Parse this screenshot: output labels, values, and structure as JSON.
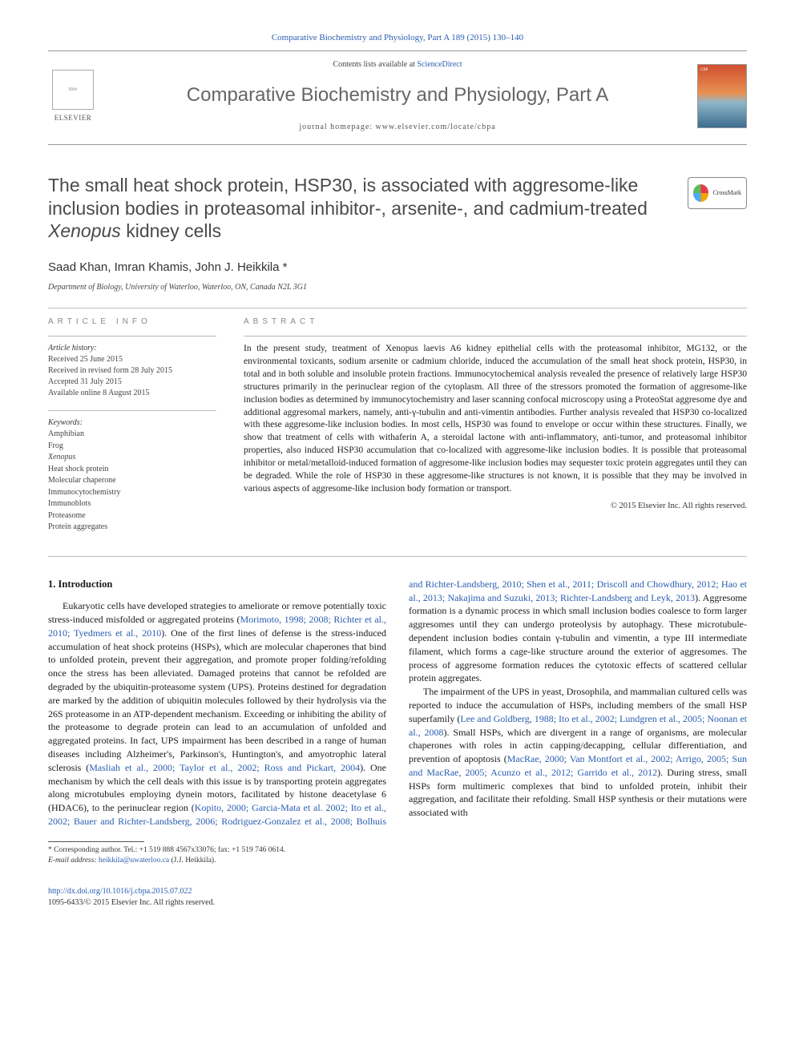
{
  "citation": "Comparative Biochemistry and Physiology, Part A 189 (2015) 130–140",
  "header": {
    "contents_prefix": "Contents lists available at ",
    "contents_link": "ScienceDirect",
    "journal_name": "Comparative Biochemistry and Physiology, Part A",
    "homepage_prefix": "journal homepage: ",
    "homepage_url": "www.elsevier.com/locate/cbpa",
    "publisher": "ELSEVIER"
  },
  "crossmark_label": "CrossMark",
  "title_pre": "The small heat shock protein, HSP30, is associated with aggresome-like inclusion bodies in proteasomal inhibitor-, arsenite-, and cadmium-treated ",
  "title_italic": "Xenopus",
  "title_post": " kidney cells",
  "authors": "Saad Khan, Imran Khamis, John J. Heikkila *",
  "affiliation": "Department of Biology, University of Waterloo, Waterloo, ON, Canada N2L 3G1",
  "article_info": {
    "heading": "article info",
    "history_label": "Article history:",
    "received": "Received 25 June 2015",
    "revised": "Received in revised form 28 July 2015",
    "accepted": "Accepted 31 July 2015",
    "online": "Available online 8 August 2015",
    "keywords_label": "Keywords:",
    "keywords": [
      "Amphibian",
      "Frog",
      "Xenopus",
      "Heat shock protein",
      "Molecular chaperone",
      "Immunocytochemistry",
      "Immunoblots",
      "Proteasome",
      "Protein aggregates"
    ]
  },
  "abstract": {
    "heading": "abstract",
    "text": "In the present study, treatment of Xenopus laevis A6 kidney epithelial cells with the proteasomal inhibitor, MG132, or the environmental toxicants, sodium arsenite or cadmium chloride, induced the accumulation of the small heat shock protein, HSP30, in total and in both soluble and insoluble protein fractions. Immunocytochemical analysis revealed the presence of relatively large HSP30 structures primarily in the perinuclear region of the cytoplasm. All three of the stressors promoted the formation of aggresome-like inclusion bodies as determined by immunocytochemistry and laser scanning confocal microscopy using a ProteoStat aggresome dye and additional aggresomal markers, namely, anti-γ-tubulin and anti-vimentin antibodies. Further analysis revealed that HSP30 co-localized with these aggresome-like inclusion bodies. In most cells, HSP30 was found to envelope or occur within these structures. Finally, we show that treatment of cells with withaferin A, a steroidal lactone with anti-inflammatory, anti-tumor, and proteasomal inhibitor properties, also induced HSP30 accumulation that co-localized with aggresome-like inclusion bodies. It is possible that proteasomal inhibitor or metal/metalloid-induced formation of aggresome-like inclusion bodies may sequester toxic protein aggregates until they can be degraded. While the role of HSP30 in these aggresome-like structures is not known, it is possible that they may be involved in various aspects of aggresome-like inclusion body formation or transport.",
    "copyright": "© 2015 Elsevier Inc. All rights reserved."
  },
  "intro": {
    "heading": "1. Introduction",
    "p1a": "Eukaryotic cells have developed strategies to ameliorate or remove potentially toxic stress-induced misfolded or aggregated proteins (",
    "p1_ref1": "Morimoto, 1998; 2008; Richter et al., 2010; Tyedmers et al., 2010",
    "p1b": "). One of the first lines of defense is the stress-induced accumulation of heat shock proteins (HSPs), which are molecular chaperones that bind to unfolded protein, prevent their aggregation, and promote proper folding/refolding once the stress has been alleviated. Damaged proteins that cannot be refolded are degraded by the ubiquitin-proteasome system (UPS). Proteins destined for degradation are marked by the addition of ubiquitin molecules followed by their hydrolysis via the 26S proteasome in an ATP-dependent mechanism. Exceeding or inhibiting the ability of the proteasome to degrade protein can lead to an accumulation of unfolded and aggregated proteins. In fact, UPS impairment has been described in a range of human diseases including Alzheimer's, Parkinson's, Huntington's, and amyotrophic lateral sclerosis (",
    "p1_ref2": "Masliah et al., 2000; Taylor et al., 2002; Ross and Pickart, 2004",
    "p1c": "). One mechanism by which the cell deals with this issue is by transporting protein aggregates along microtubules employing dynein motors, facilitated by histone deacetylase 6 (HDAC6), to the perinuclear region (",
    "p1_ref3": "Kopito, 2000; Garcia-Mata et al. 2002; Ito et al., 2002; Bauer and Richter-Landsberg, 2006; Rodriguez-Gonzalez et al., 2008; Bolhuis and Richter-Landsberg, 2010; Shen et al., 2011; Driscoll and Chowdhury, 2012; Hao et al., 2013; Nakajima and Suzuki, 2013; Richter-Landsberg and Leyk, 2013",
    "p1d": "). Aggresome formation is a dynamic process in which small inclusion bodies coalesce to form larger aggresomes until they can undergo proteolysis by autophagy. These microtubule-dependent inclusion bodies contain γ-tubulin and vimentin, a type III intermediate filament, which forms a cage-like structure around the exterior of aggresomes. The process of aggresome formation reduces the cytotoxic effects of scattered cellular protein aggregates.",
    "p2a": "The impairment of the UPS in yeast, Drosophila, and mammalian cultured cells was reported to induce the accumulation of HSPs, including members of the small HSP superfamily (",
    "p2_ref1": "Lee and Goldberg, 1988; Ito et al., 2002; Lundgren et al., 2005; Noonan et al., 2008",
    "p2b": "). Small HSPs, which are divergent in a range of organisms, are molecular chaperones with roles in actin capping/decapping, cellular differentiation, and prevention of apoptosis (",
    "p2_ref2": "MacRae, 2000; Van Montfort et al., 2002; Arrigo, 2005; Sun and MacRae, 2005; Acunzo et al., 2012; Garrido et al., 2012",
    "p2c": "). During stress, small HSPs form multimeric complexes that bind to unfolded protein, inhibit their aggregation, and facilitate their refolding. Small HSP synthesis or their mutations were associated with"
  },
  "footnote": {
    "corresponding": "* Corresponding author. Tel.: +1 519 888 4567x33076; fax: +1 519 746 0614.",
    "email_label": "E-mail address: ",
    "email": "heikkila@uwaterloo.ca",
    "email_suffix": " (J.J. Heikkila)."
  },
  "doi": {
    "url": "http://dx.doi.org/10.1016/j.cbpa.2015.07.022",
    "issn_line": "1095-6433/© 2015 Elsevier Inc. All rights reserved."
  },
  "colors": {
    "link": "#2a5db0",
    "text": "#1a1a1a",
    "muted": "#666666",
    "rule": "#bbbbbb"
  }
}
